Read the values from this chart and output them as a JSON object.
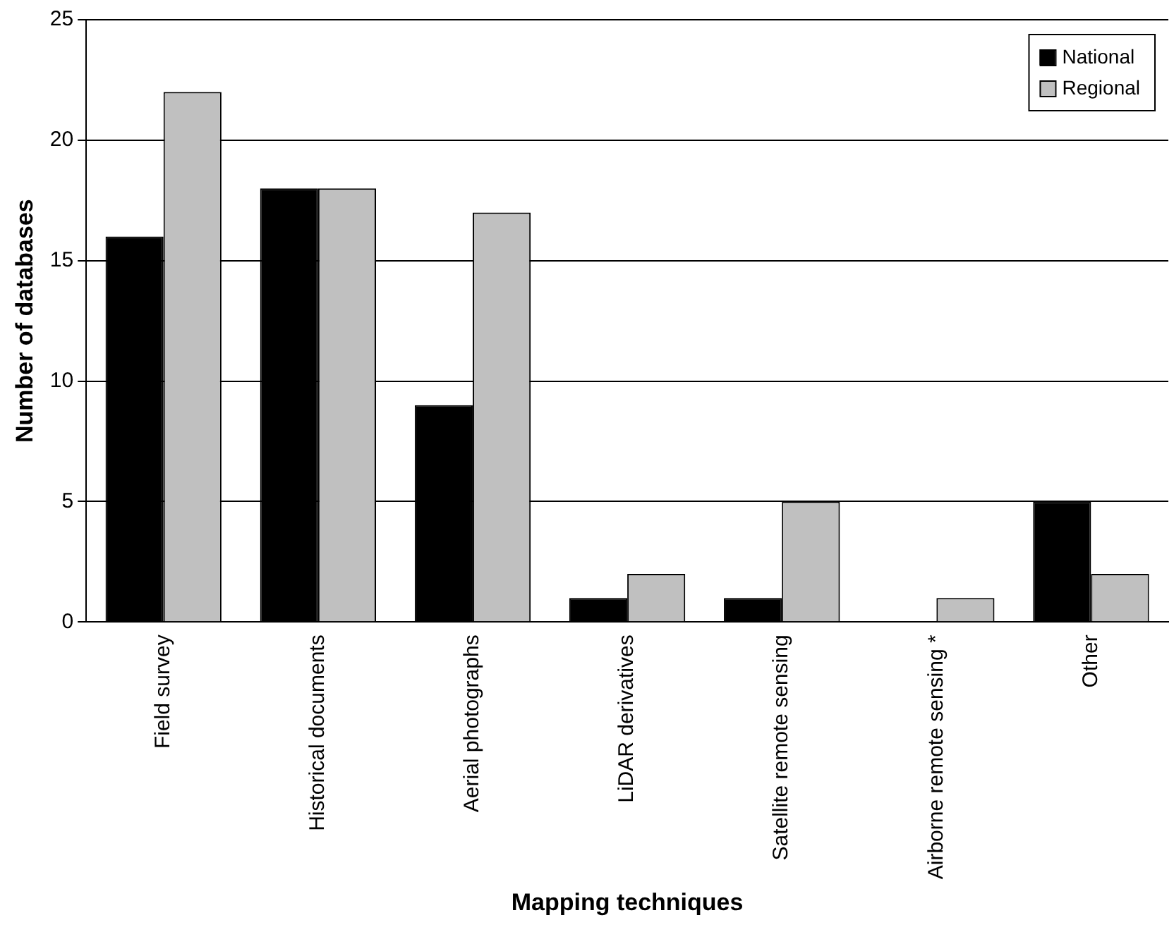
{
  "chart_data": {
    "type": "bar",
    "xlabel": "Mapping techniques",
    "ylabel": "Number of databases",
    "categories": [
      "Field survey",
      "Historical documents",
      "Aerial photographs",
      "LiDAR derivatives",
      "Satellite remote sensing",
      "Airborne remote sensing *",
      "Other"
    ],
    "series": [
      {
        "name": "National",
        "color": "#000000",
        "values": [
          16,
          18,
          9,
          1,
          1,
          0,
          5
        ]
      },
      {
        "name": "Regional",
        "color": "#c0c0c0",
        "values": [
          22,
          18,
          17,
          2,
          5,
          1,
          2
        ]
      }
    ],
    "ylim": [
      0,
      25
    ],
    "yticks": [
      0,
      5,
      10,
      15,
      20,
      25
    ],
    "grid": "y",
    "legend": "top right"
  }
}
